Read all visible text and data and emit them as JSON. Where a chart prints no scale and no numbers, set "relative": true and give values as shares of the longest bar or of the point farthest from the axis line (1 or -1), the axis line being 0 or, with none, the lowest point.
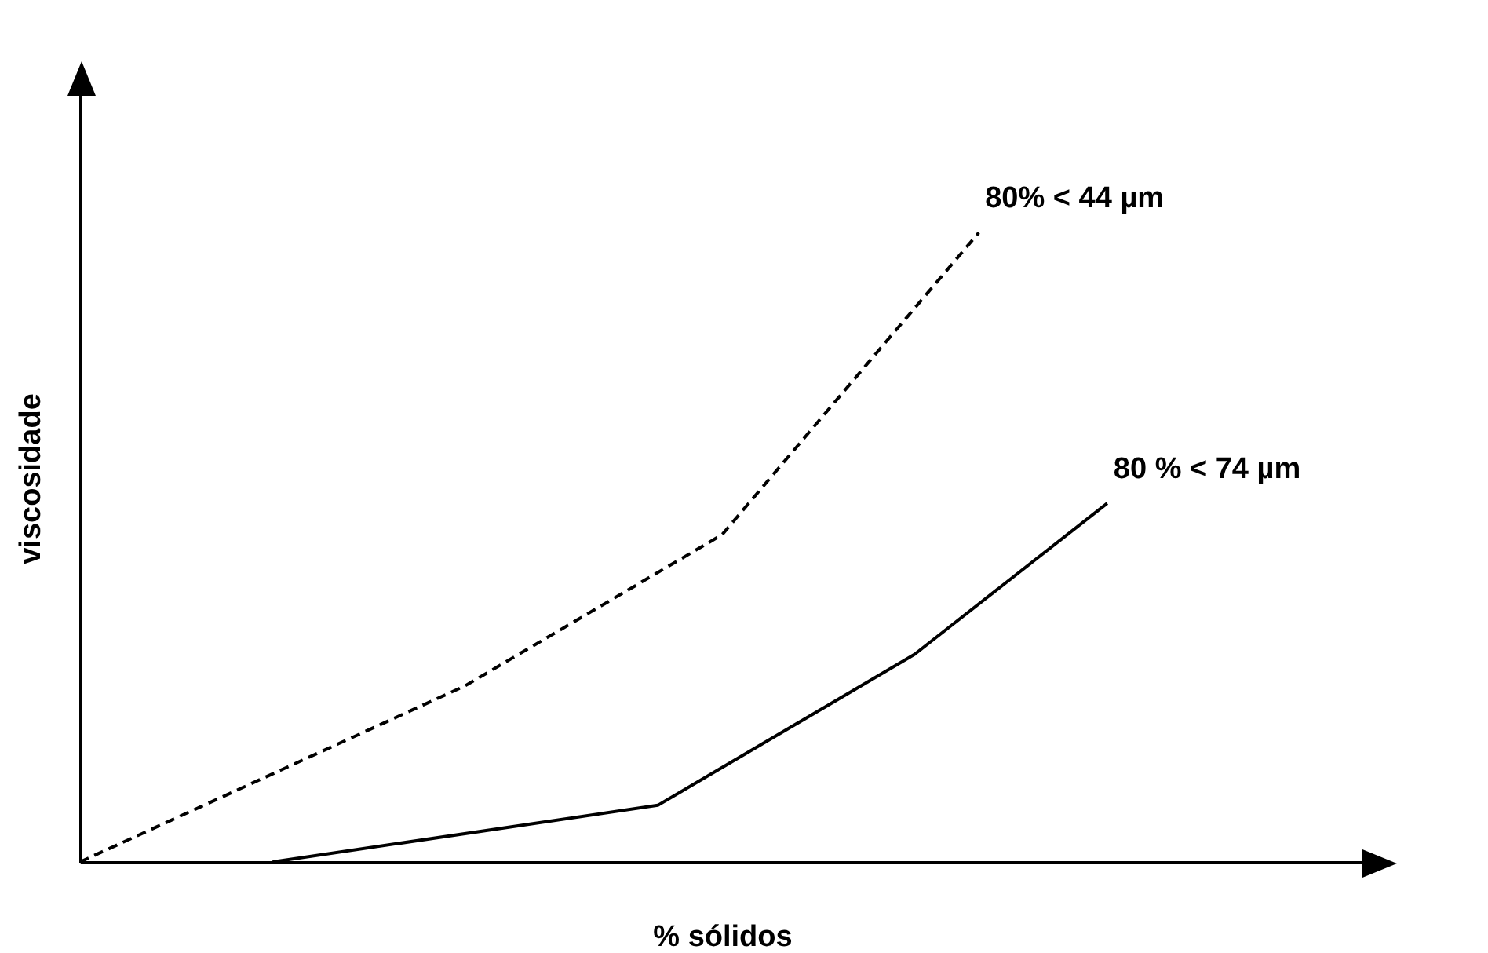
{
  "chart_data": {
    "type": "line",
    "relative": true,
    "xlabel": "% sólidos",
    "ylabel": "viscosidade",
    "legend": false,
    "marker": "none",
    "categories": [
      null,
      null,
      null,
      null,
      null,
      null,
      null,
      null,
      null,
      null,
      null,
      null,
      null,
      null,
      null,
      null,
      null,
      null,
      null,
      null,
      null
    ],
    "series": [
      {
        "name": "80% < 44 µm",
        "color": "#000000",
        "line_style": "dashed",
        "values": [
          0,
          null,
          null,
          null,
          null,
          null,
          0.28,
          null,
          null,
          null,
          0.52,
          null,
          null,
          null,
          1,
          null,
          null,
          null,
          null,
          null,
          null
        ]
      },
      {
        "name": "80 % < 74 µm",
        "color": "#000000",
        "line_style": "solid",
        "values": [
          null,
          null,
          null,
          0,
          null,
          null,
          null,
          null,
          null,
          0.09,
          null,
          null,
          null,
          0.33,
          null,
          null,
          0.57,
          null,
          null,
          null,
          null
        ]
      }
    ]
  }
}
